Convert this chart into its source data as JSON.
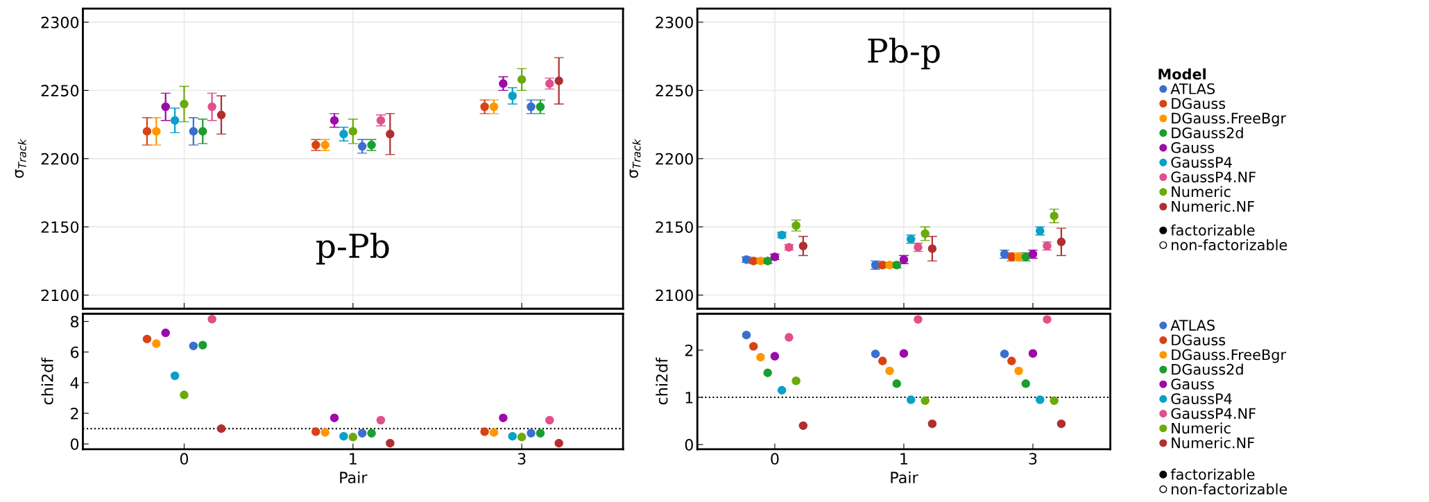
{
  "chart_data": [
    {
      "type": "scatter",
      "categories": [
        "0",
        "1",
        "3"
      ],
      "ylabel": "σ$_{Track}$",
      "ylim": [
        2090,
        2310
      ],
      "yticks": [
        2100,
        2150,
        2200,
        2250,
        2300
      ],
      "grid": true,
      "tick_labels": "y",
      "marker": "circle",
      "legend": false,
      "annotations": [
        "p-Pb"
      ],
      "series": [
        {
          "color": "#d84315",
          "values": [
            2220,
            2210,
            2238
          ],
          "errors": [
            10,
            4,
            5
          ]
        },
        {
          "color": "#ff9800",
          "values": [
            2220,
            2210,
            2238
          ],
          "errors": [
            10,
            4,
            5
          ]
        },
        {
          "color": "#9c0aa8",
          "values": [
            2238,
            2228,
            2255
          ],
          "errors": [
            10,
            5,
            5
          ]
        },
        {
          "color": "#0aa0c8",
          "values": [
            2228,
            2218,
            2246
          ],
          "errors": [
            9,
            5,
            6
          ]
        },
        {
          "color": "#6aaa0a",
          "values": [
            2240,
            2220,
            2258
          ],
          "errors": [
            13,
            9,
            8
          ]
        },
        {
          "color": "#3a6fd0",
          "values": [
            2220,
            2209,
            2238
          ],
          "errors": [
            10,
            5,
            5
          ]
        },
        {
          "color": "#1b9e2f",
          "values": [
            2220,
            2210,
            2238
          ],
          "errors": [
            9,
            4,
            5
          ]
        },
        {
          "color": "#e0508a",
          "values": [
            2238,
            2228,
            2255
          ],
          "errors": [
            10,
            4,
            4
          ]
        },
        {
          "color": "#b03030",
          "values": [
            2232,
            2218,
            2257
          ],
          "errors": [
            14,
            15,
            17
          ]
        }
      ]
    },
    {
      "type": "scatter",
      "categories": [
        "0",
        "1",
        "3"
      ],
      "xlabel": "Pair",
      "ylabel": "chi2df",
      "ylim": [
        -0.35,
        8.5
      ],
      "yticks": [
        0,
        2,
        4,
        6,
        8
      ],
      "marker": "circle",
      "legend": false,
      "ref_lines": [
        {
          "axis": "y",
          "value": 1,
          "color": "#000000",
          "line_style": "dotted"
        }
      ],
      "series": [
        {
          "color": "#d84315",
          "values": [
            6.85,
            0.8,
            0.8
          ]
        },
        {
          "color": "#ff9800",
          "values": [
            6.55,
            0.75,
            0.75
          ]
        },
        {
          "color": "#9c0aa8",
          "values": [
            7.25,
            1.7,
            1.7
          ]
        },
        {
          "color": "#0aa0c8",
          "values": [
            4.45,
            0.5,
            0.5
          ]
        },
        {
          "color": "#6aaa0a",
          "values": [
            3.2,
            0.45,
            0.45
          ]
        },
        {
          "color": "#3a6fd0",
          "values": [
            6.4,
            0.7,
            0.7
          ]
        },
        {
          "color": "#1b9e2f",
          "values": [
            6.45,
            0.7,
            0.7
          ]
        },
        {
          "color": "#e0508a",
          "values": [
            8.15,
            1.55,
            1.55
          ]
        },
        {
          "color": "#b03030",
          "values": [
            1.0,
            0.05,
            0.05
          ]
        }
      ]
    },
    {
      "type": "scatter",
      "categories": [
        "0",
        "1",
        "3"
      ],
      "ylabel": "σ$_{Track}$",
      "ylim": [
        2090,
        2310
      ],
      "yticks": [
        2100,
        2150,
        2200,
        2250,
        2300
      ],
      "grid": true,
      "tick_labels": "y",
      "marker": "circle",
      "legend": "right",
      "legend_title": "Model",
      "annotations": [
        "Pb-p",
        "factorizable",
        "non-factorizable"
      ],
      "series": [
        {
          "name": "ATLAS",
          "color": "#3a6fd0",
          "values": [
            2126,
            2122,
            2130
          ],
          "errors": [
            2,
            3,
            3
          ]
        },
        {
          "name": "DGauss",
          "color": "#d84315",
          "values": [
            2125,
            2122,
            2128
          ],
          "errors": [
            2,
            2,
            3
          ]
        },
        {
          "name": "DGauss.FreeBgr",
          "color": "#ff9800",
          "values": [
            2125,
            2122,
            2128
          ],
          "errors": [
            2,
            2,
            3
          ]
        },
        {
          "name": "DGauss2d",
          "color": "#1b9e2f",
          "values": [
            2125,
            2122,
            2128
          ],
          "errors": [
            2,
            2,
            3
          ]
        },
        {
          "name": "Gauss",
          "color": "#9c0aa8",
          "values": [
            2128,
            2126,
            2130
          ],
          "errors": [
            2,
            3,
            3
          ]
        },
        {
          "name": "GaussP4",
          "color": "#0aa0c8",
          "values": [
            2144,
            2141,
            2147
          ],
          "errors": [
            2,
            3,
            3
          ]
        },
        {
          "name": "GaussP4.NF",
          "color": "#e0508a",
          "values": [
            2135,
            2135,
            2136
          ],
          "errors": [
            2,
            3,
            3
          ]
        },
        {
          "name": "Numeric",
          "color": "#6aaa0a",
          "values": [
            2151,
            2145,
            2158
          ],
          "errors": [
            4,
            5,
            5
          ]
        },
        {
          "name": "Numeric.NF",
          "color": "#b03030",
          "values": [
            2136,
            2134,
            2139
          ],
          "errors": [
            7,
            9,
            10
          ]
        }
      ]
    },
    {
      "type": "scatter",
      "categories": [
        "0",
        "1",
        "3"
      ],
      "xlabel": "Pair",
      "ylabel": "chi2df",
      "ylim": [
        -0.1,
        2.77
      ],
      "yticks": [
        0,
        1,
        2
      ],
      "marker": "circle",
      "legend": "right",
      "annotations": [
        "factorizable",
        "non-factorizable"
      ],
      "ref_lines": [
        {
          "axis": "y",
          "value": 1,
          "color": "#000000",
          "line_style": "dotted"
        }
      ],
      "series": [
        {
          "name": "ATLAS",
          "color": "#3a6fd0",
          "values": [
            2.32,
            1.92,
            1.92
          ]
        },
        {
          "name": "DGauss",
          "color": "#d84315",
          "values": [
            2.08,
            1.77,
            1.77
          ]
        },
        {
          "name": "DGauss.FreeBgr",
          "color": "#ff9800",
          "values": [
            1.85,
            1.56,
            1.56
          ]
        },
        {
          "name": "DGauss2d",
          "color": "#1b9e2f",
          "values": [
            1.52,
            1.29,
            1.29
          ]
        },
        {
          "name": "Gauss",
          "color": "#9c0aa8",
          "values": [
            1.87,
            1.93,
            1.93
          ]
        },
        {
          "name": "GaussP4",
          "color": "#0aa0c8",
          "values": [
            1.15,
            0.95,
            0.95
          ]
        },
        {
          "name": "GaussP4.NF",
          "color": "#e0508a",
          "values": [
            2.27,
            2.65,
            2.65
          ]
        },
        {
          "name": "Numeric",
          "color": "#6aaa0a",
          "values": [
            1.35,
            0.93,
            0.93
          ]
        },
        {
          "name": "Numeric.NF",
          "color": "#b03030",
          "values": [
            0.4,
            0.44,
            0.44
          ]
        }
      ]
    }
  ]
}
